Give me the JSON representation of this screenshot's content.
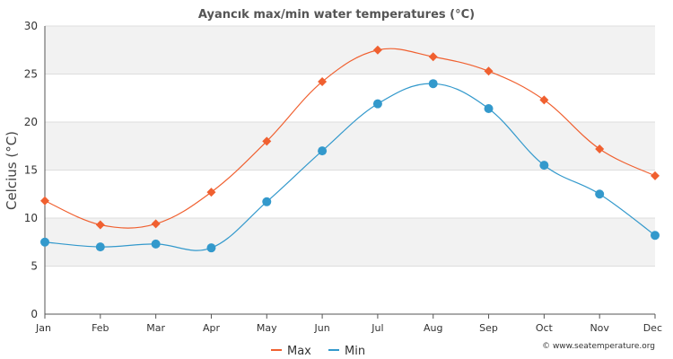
{
  "chart_data": {
    "type": "line",
    "title": "Ayancık max/min water temperatures (°C)",
    "ylabel": "Celcius (°C)",
    "xlabel": "",
    "categories": [
      "Jan",
      "Feb",
      "Mar",
      "Apr",
      "May",
      "Jun",
      "Jul",
      "Aug",
      "Sep",
      "Oct",
      "Nov",
      "Dec"
    ],
    "ylim": [
      0,
      30
    ],
    "yticks": [
      0,
      5,
      10,
      15,
      20,
      25,
      30
    ],
    "grid": true,
    "legend_position": "bottom-center",
    "series": [
      {
        "name": "Max",
        "color": "#f06030",
        "marker": "diamond",
        "values": [
          11.8,
          9.3,
          9.4,
          12.7,
          18.0,
          24.2,
          27.5,
          26.8,
          25.3,
          22.3,
          17.2,
          14.4
        ]
      },
      {
        "name": "Min",
        "color": "#3399cc",
        "marker": "circle",
        "values": [
          7.5,
          7.0,
          7.3,
          6.9,
          11.7,
          17.0,
          21.9,
          24.0,
          21.4,
          15.5,
          12.5,
          8.2
        ]
      }
    ]
  },
  "credit": "© www.seatemperature.org",
  "colors": {
    "band": "#f2f2f2",
    "axis": "#555555",
    "grid": "#dddddd"
  }
}
